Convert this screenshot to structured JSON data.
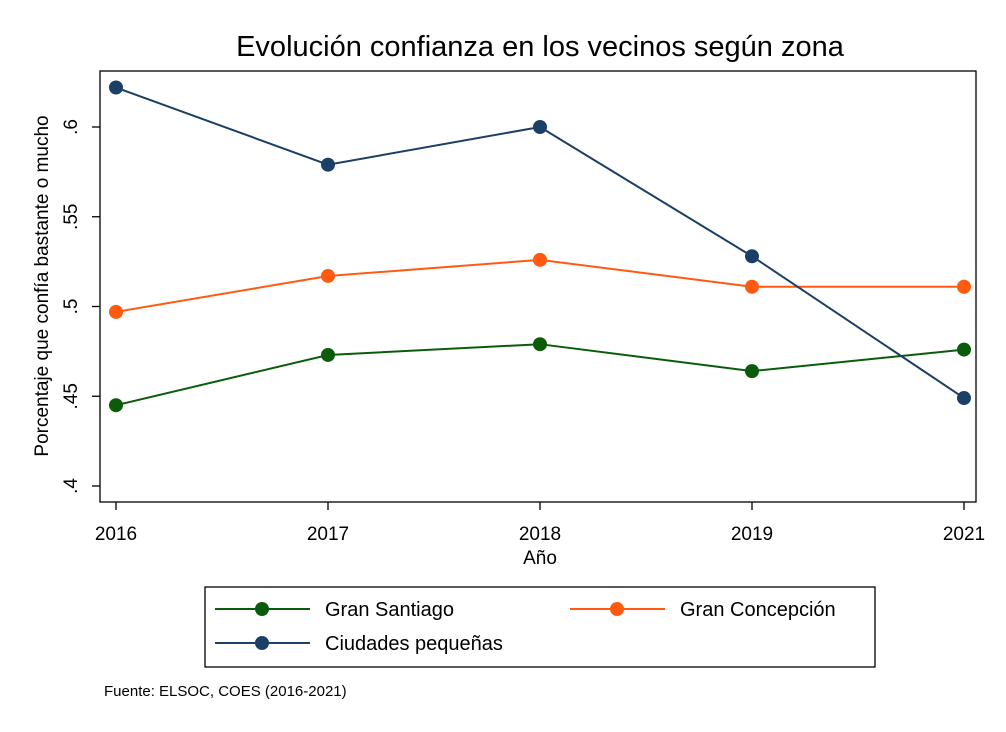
{
  "chart_data": {
    "type": "line",
    "title": "Evolución confianza en los vecinos según zona",
    "xlabel": "Año",
    "ylabel": "Porcentaje que confía bastante o mucho",
    "x": [
      2016,
      2017,
      2018,
      2019,
      2021
    ],
    "x_tick_labels": [
      "2016",
      "2017",
      "2018",
      "2019",
      "2021"
    ],
    "y_ticks": [
      0.4,
      0.45,
      0.5,
      0.55,
      0.6
    ],
    "y_tick_labels": [
      ".4",
      ".45",
      ".5",
      ".55",
      ".6"
    ],
    "ylim": [
      0.39,
      0.635
    ],
    "grid": false,
    "legend_position": "bottom",
    "series": [
      {
        "name": "Gran Santiago",
        "color": "#0a5c0a",
        "values": [
          0.445,
          0.473,
          0.479,
          0.464,
          0.476
        ]
      },
      {
        "name": "Gran Concepción",
        "color": "#ff5a10",
        "values": [
          0.497,
          0.517,
          0.526,
          0.511,
          0.511
        ]
      },
      {
        "name": "Ciudades pequeñas",
        "color": "#1b3f66",
        "values": [
          0.622,
          0.579,
          0.6,
          0.528,
          0.449
        ]
      }
    ],
    "note": "Fuente: ELSOC, COES (2016-2021)"
  }
}
